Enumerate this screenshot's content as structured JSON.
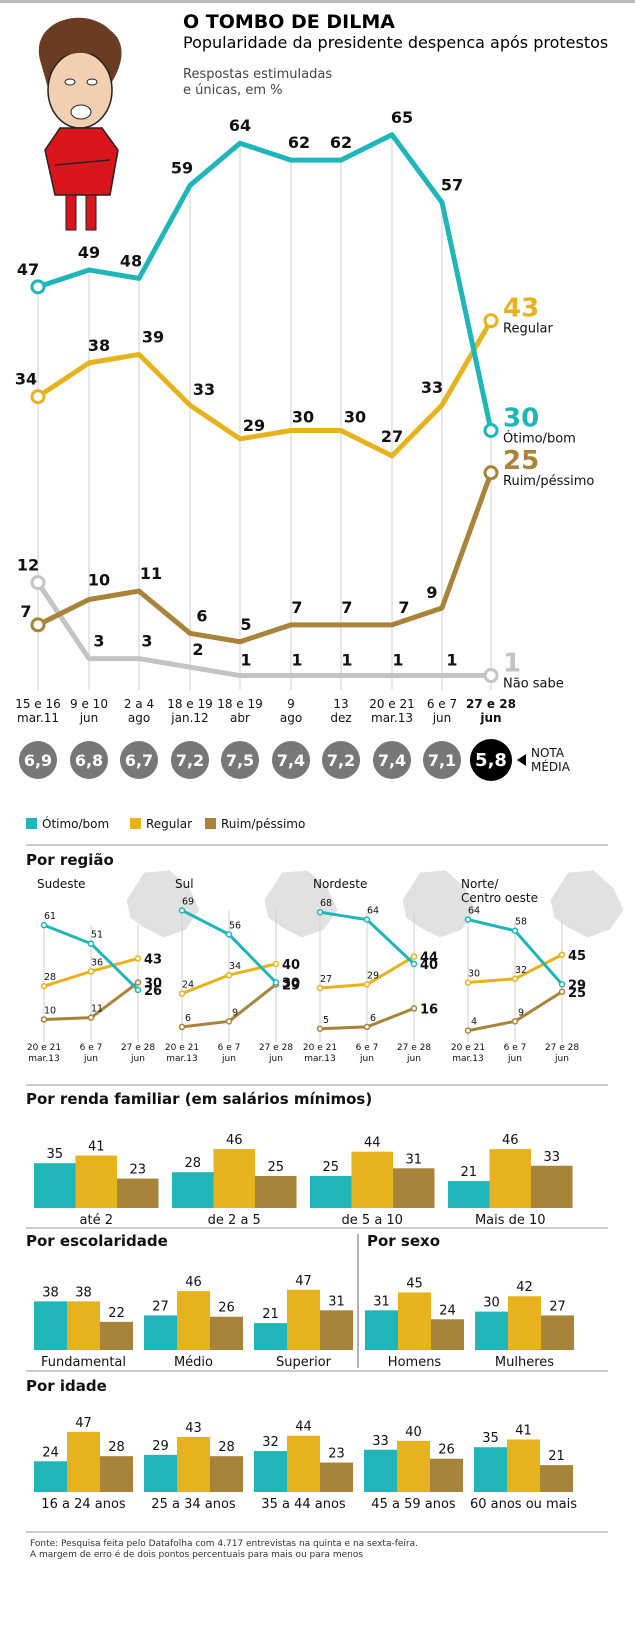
{
  "header": {
    "title": "O TOMBO DE DILMA",
    "subtitle": "Popularidade da presidente despenca após protestos",
    "note_line1": "Respostas estimuladas",
    "note_line2": "e únicas, em %"
  },
  "colors": {
    "otimo": "#1fb5b9",
    "regular": "#e6b31e",
    "ruim": "#a8833a",
    "naosabe": "#c4c4c4"
  },
  "chart_data": [
    {
      "type": "line",
      "title": "O TOMBO DE DILMA",
      "x": [
        {
          "l1": "15 e 16",
          "l2": "mar.11"
        },
        {
          "l1": "9 e 10",
          "l2": "jun"
        },
        {
          "l1": "2 a 4",
          "l2": "ago"
        },
        {
          "l1": "18 e 19",
          "l2": "jan.12"
        },
        {
          "l1": "18 e 19",
          "l2": "abr"
        },
        {
          "l1": "9",
          "l2": "ago"
        },
        {
          "l1": "13",
          "l2": "dez"
        },
        {
          "l1": "20 e 21",
          "l2": "mar.13"
        },
        {
          "l1": "6 e 7",
          "l2": "jun"
        },
        {
          "l1": "27 e 28",
          "l2": "jun"
        }
      ],
      "ylim": [
        0,
        70
      ],
      "series": [
        {
          "name": "Ótimo/bom",
          "key": "otimo",
          "values": [
            47,
            49,
            48,
            59,
            64,
            62,
            62,
            65,
            57,
            30
          ]
        },
        {
          "name": "Regular",
          "key": "regular",
          "values": [
            34,
            38,
            39,
            33,
            29,
            30,
            30,
            27,
            33,
            43
          ]
        },
        {
          "name": "Ruim/péssimo",
          "key": "ruim",
          "values": [
            7,
            10,
            11,
            6,
            5,
            7,
            7,
            7,
            9,
            25
          ]
        },
        {
          "name": "Não sabe",
          "key": "naosabe",
          "values": [
            12,
            3,
            3,
            2,
            1,
            1,
            1,
            1,
            1,
            1
          ]
        }
      ],
      "nota_media": {
        "label1": "NOTA",
        "label2": "MÉDIA",
        "values": [
          "6,9",
          "6,8",
          "6,7",
          "7,2",
          "7,5",
          "7,4",
          "7,2",
          "7,4",
          "7,1",
          "5,8"
        ]
      }
    },
    {
      "type": "line",
      "title": "Por região",
      "x": [
        {
          "l1": "20 e 21",
          "l2": "mar.13"
        },
        {
          "l1": "6 e 7",
          "l2": "jun"
        },
        {
          "l1": "27 e 28",
          "l2": "jun"
        }
      ],
      "panels": [
        {
          "name": "Sudeste",
          "otimo": [
            61,
            51,
            26
          ],
          "regular": [
            28,
            36,
            43
          ],
          "ruim": [
            10,
            11,
            30
          ]
        },
        {
          "name": "Sul",
          "otimo": [
            69,
            56,
            30
          ],
          "regular": [
            24,
            34,
            40
          ],
          "ruim": [
            6,
            9,
            29
          ]
        },
        {
          "name": "Nordeste",
          "otimo": [
            68,
            64,
            40
          ],
          "regular": [
            27,
            29,
            44
          ],
          "ruim": [
            5,
            6,
            16
          ]
        },
        {
          "name": "Norte/ Centro oeste",
          "name1": "Norte/",
          "name2": "Centro oeste",
          "otimo": [
            64,
            58,
            29
          ],
          "regular": [
            30,
            32,
            45
          ],
          "ruim": [
            4,
            9,
            25
          ]
        }
      ]
    },
    {
      "type": "bar",
      "title": "Por renda familiar (em salários mínimos)",
      "groups": [
        {
          "label": "até 2",
          "values": [
            35,
            41,
            23
          ]
        },
        {
          "label": "de 2 a 5",
          "values": [
            28,
            46,
            25
          ]
        },
        {
          "label": "de 5 a 10",
          "values": [
            25,
            44,
            31
          ]
        },
        {
          "label": "Mais de 10",
          "values": [
            21,
            46,
            33
          ]
        }
      ]
    },
    {
      "type": "bar",
      "title": "Por escolaridade",
      "groups": [
        {
          "label": "Fundamental",
          "values": [
            38,
            38,
            22
          ]
        },
        {
          "label": "Médio",
          "values": [
            27,
            46,
            26
          ]
        },
        {
          "label": "Superior",
          "values": [
            21,
            47,
            31
          ]
        }
      ]
    },
    {
      "type": "bar",
      "title": "Por sexo",
      "groups": [
        {
          "label": "Homens",
          "values": [
            31,
            45,
            24
          ]
        },
        {
          "label": "Mulheres",
          "values": [
            30,
            42,
            27
          ]
        }
      ]
    },
    {
      "type": "bar",
      "title": "Por idade",
      "groups": [
        {
          "label": "16 a 24 anos",
          "values": [
            24,
            47,
            28
          ]
        },
        {
          "label": "25 a 34 anos",
          "values": [
            29,
            43,
            28
          ]
        },
        {
          "label": "35 a 44 anos",
          "values": [
            32,
            44,
            23
          ]
        },
        {
          "label": "45 a 59 anos",
          "values": [
            33,
            40,
            26
          ]
        },
        {
          "label": "60 anos ou mais",
          "values": [
            35,
            41,
            21
          ]
        }
      ]
    }
  ],
  "legend": [
    {
      "key": "otimo",
      "label": "Ótimo/bom"
    },
    {
      "key": "regular",
      "label": "Regular"
    },
    {
      "key": "ruim",
      "label": "Ruim/péssimo"
    }
  ],
  "end_labels": {
    "otimo": "Ótimo/bom",
    "regular": "Regular",
    "ruim": "Ruim/péssimo",
    "naosabe": "Não sabe"
  },
  "source": {
    "line1": "Fonte: Pesquisa feita pelo Datafolha com 4.717 entrevistas na quinta e na sexta-feira.",
    "line2": "A margem de erro é de dois pontos percentuais para mais ou para menos"
  }
}
